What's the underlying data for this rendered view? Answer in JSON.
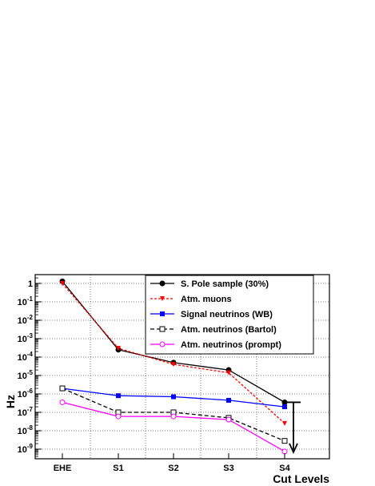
{
  "chart_data": {
    "type": "line",
    "title": "",
    "xlabel": "Cut Levels",
    "ylabel": "Hz",
    "yscale": "log",
    "ylim": [
      3e-10,
      3
    ],
    "grid": true,
    "legend_position": "top-right",
    "categories": [
      "EHE",
      "S1",
      "S2",
      "S3",
      "S4"
    ],
    "yticks": [
      {
        "value": 1,
        "base": "1",
        "exp": ""
      },
      {
        "value": 0.1,
        "base": "10",
        "exp": "-1"
      },
      {
        "value": 0.01,
        "base": "10",
        "exp": "-2"
      },
      {
        "value": 0.001,
        "base": "10",
        "exp": "-3"
      },
      {
        "value": 0.0001,
        "base": "10",
        "exp": "-4"
      },
      {
        "value": 1e-05,
        "base": "10",
        "exp": "-5"
      },
      {
        "value": 1e-06,
        "base": "10",
        "exp": "-6"
      },
      {
        "value": 1e-07,
        "base": "10",
        "exp": "-7"
      },
      {
        "value": 1e-08,
        "base": "10",
        "exp": "-8"
      },
      {
        "value": 1e-09,
        "base": "10",
        "exp": "-9"
      }
    ],
    "series": [
      {
        "name": "S. Pole sample (30%)",
        "color": "#000000",
        "dash": "solid",
        "marker": "filled-circle",
        "values": [
          1.3,
          0.00025,
          5e-05,
          2e-05,
          3.5e-07
        ]
      },
      {
        "name": "Atm. muons",
        "color": "#ff0000",
        "dash": "dotted",
        "marker": "filled-triangle-down",
        "values": [
          1.0,
          0.0003,
          4e-05,
          1.4e-05,
          2.5e-08
        ]
      },
      {
        "name": "Signal neutrinos (WB)",
        "color": "#0000ff",
        "dash": "solid",
        "marker": "filled-square",
        "values": [
          2e-06,
          8e-07,
          7e-07,
          4.5e-07,
          2e-07
        ]
      },
      {
        "name": "Atm. neutrinos (Bartol)",
        "color": "#000000",
        "dash": "dashed",
        "marker": "open-square",
        "values": [
          2e-06,
          1e-07,
          1e-07,
          5e-08,
          2.8e-09
        ]
      },
      {
        "name": "Atm. neutrinos (prompt)",
        "color": "#ff00ff",
        "dash": "solid",
        "marker": "open-circle",
        "values": [
          3.5e-07,
          6e-08,
          6e-08,
          4e-08,
          7.5e-10
        ]
      }
    ],
    "annotations": [
      {
        "type": "arrow",
        "category": "S4",
        "from": 3.5e-07,
        "to": 7.5e-10,
        "color": "#000000"
      }
    ]
  }
}
